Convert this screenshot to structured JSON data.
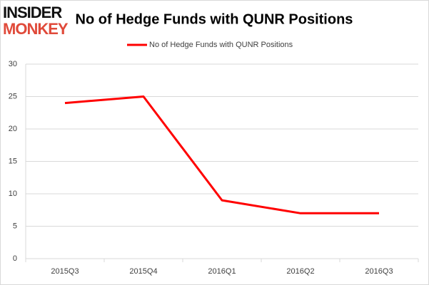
{
  "logo": {
    "top": "INSIDER",
    "bottom": "MONKEY"
  },
  "chart_data": {
    "type": "line",
    "title": "No of Hedge Funds with QUNR Positions",
    "categories": [
      "2015Q3",
      "2015Q4",
      "2016Q1",
      "2016Q2",
      "2016Q3"
    ],
    "series": [
      {
        "name": "No of Hedge Funds with QUNR Positions",
        "color": "#ff0000",
        "values": [
          24,
          25,
          9,
          7,
          7
        ]
      }
    ],
    "ylim": [
      0,
      30
    ],
    "yticks": [
      0,
      5,
      10,
      15,
      20,
      25,
      30
    ],
    "grid": true,
    "legend": "top"
  }
}
